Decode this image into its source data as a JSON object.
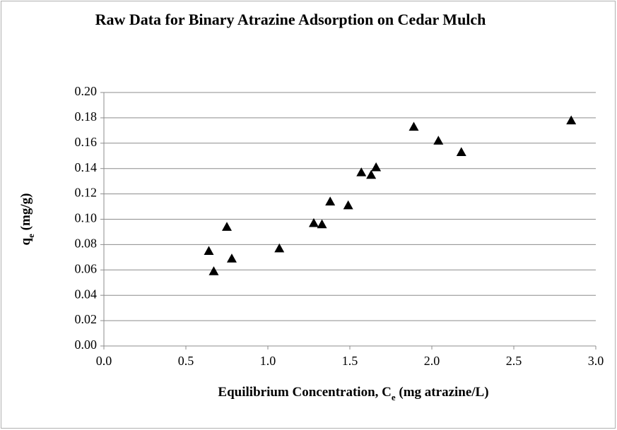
{
  "chart_data": {
    "type": "scatter",
    "title": "Raw Data for Binary Atrazine Adsorption on Cedar Mulch",
    "xlabel": [
      "Equilibrium Concentration, C",
      "e",
      " (mg atrazine/L)"
    ],
    "ylabel": [
      "q",
      "e",
      " (mg/g)"
    ],
    "color": "#000000",
    "marker": "triangle",
    "grid": true,
    "x": [
      0.64,
      0.67,
      0.75,
      0.78,
      1.07,
      1.28,
      1.33,
      1.38,
      1.49,
      1.57,
      1.63,
      1.66,
      1.89,
      2.04,
      2.18,
      2.85
    ],
    "values": [
      0.075,
      0.059,
      0.094,
      0.069,
      0.077,
      0.097,
      0.096,
      0.114,
      0.111,
      0.137,
      0.135,
      0.141,
      0.173,
      0.162,
      0.153,
      0.178
    ],
    "xlim": [
      0,
      3
    ],
    "xticks": [
      {
        "value": 0,
        "label": "0.0"
      },
      0.5,
      {
        "value": 1,
        "label": "1.0"
      },
      1.5,
      {
        "value": 2,
        "label": "2.0"
      },
      2.5,
      {
        "value": 3,
        "label": "3.0"
      }
    ],
    "ylim": [
      0,
      0.2
    ],
    "yticks": [
      {
        "value": 0,
        "label": "0.00"
      },
      0.02,
      0.04,
      0.06,
      0.08,
      {
        "value": 0.1,
        "label": "0.10"
      },
      0.12,
      0.14,
      0.16,
      0.18,
      {
        "value": 0.2,
        "label": "0.20"
      }
    ]
  }
}
